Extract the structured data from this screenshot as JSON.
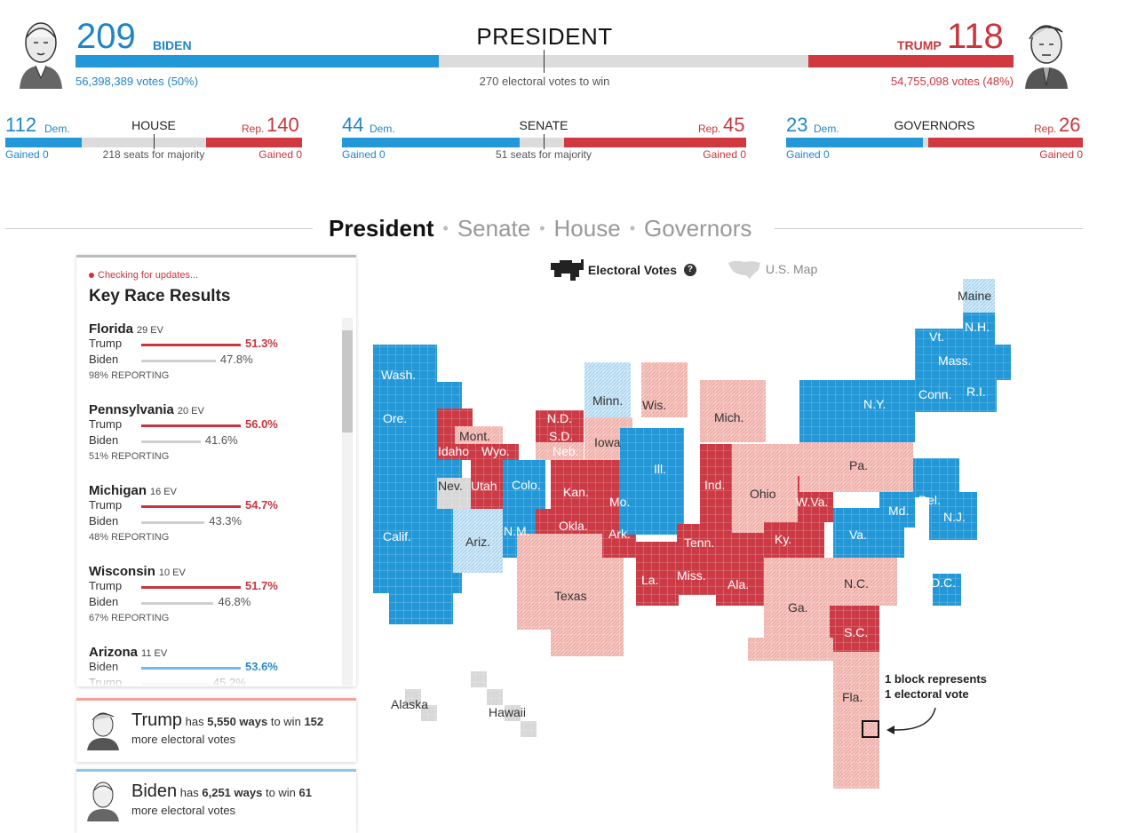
{
  "president": {
    "title": "PRESIDENT",
    "biden": {
      "ev": "209",
      "name": "BIDEN",
      "votes": "56,398,389 votes (50%)",
      "ev_share": 0.387
    },
    "trump": {
      "ev": "118",
      "name": "TRUMP",
      "votes": "54,755,098 votes (48%)",
      "ev_share": 0.219
    },
    "to_win": "270 electoral votes to win"
  },
  "chambers": [
    {
      "title": "HOUSE",
      "dem": "112",
      "rep": "140",
      "dem_label": "Dem.",
      "rep_label": "Rep.",
      "majority": "218 seats for majority",
      "dem_gained": "Gained 0",
      "rep_gained": "Gained 0",
      "dem_share": 0.257,
      "rep_share": 0.322
    },
    {
      "title": "SENATE",
      "dem": "44",
      "rep": "45",
      "dem_label": "Dem.",
      "rep_label": "Rep.",
      "majority": "51 seats for majority",
      "dem_gained": "Gained 0",
      "rep_gained": "Gained 0",
      "dem_share": 0.44,
      "rep_share": 0.45
    },
    {
      "title": "GOVERNORS",
      "dem": "23",
      "rep": "26",
      "dem_label": "Dem.",
      "rep_label": "Rep.",
      "majority": "",
      "dem_gained": "Gained 0",
      "rep_gained": "Gained 0",
      "dem_share": 0.46,
      "rep_share": 0.52
    }
  ],
  "tabs": [
    "President",
    "Senate",
    "House",
    "Governors"
  ],
  "key_races": {
    "status": "Checking for updates...",
    "title": "Key Race Results",
    "races": [
      {
        "state": "Florida",
        "ev": "29 EV",
        "rows": [
          {
            "name": "Trump",
            "pct": "51.3%",
            "party": "rep",
            "value": 51.3,
            "lead": true
          },
          {
            "name": "Biden",
            "pct": "47.8%",
            "party": "dem",
            "value": 47.8,
            "lead": false
          }
        ],
        "reporting": "98% REPORTING"
      },
      {
        "state": "Pennsylvania",
        "ev": "20 EV",
        "rows": [
          {
            "name": "Trump",
            "pct": "56.0%",
            "party": "rep",
            "value": 56.0,
            "lead": true
          },
          {
            "name": "Biden",
            "pct": "41.6%",
            "party": "dem",
            "value": 41.6,
            "lead": false
          }
        ],
        "reporting": "51% REPORTING"
      },
      {
        "state": "Michigan",
        "ev": "16 EV",
        "rows": [
          {
            "name": "Trump",
            "pct": "54.7%",
            "party": "rep",
            "value": 54.7,
            "lead": true
          },
          {
            "name": "Biden",
            "pct": "43.3%",
            "party": "dem",
            "value": 43.3,
            "lead": false
          }
        ],
        "reporting": "48% REPORTING"
      },
      {
        "state": "Wisconsin",
        "ev": "10 EV",
        "rows": [
          {
            "name": "Trump",
            "pct": "51.7%",
            "party": "rep",
            "value": 51.7,
            "lead": true
          },
          {
            "name": "Biden",
            "pct": "46.8%",
            "party": "dem",
            "value": 46.8,
            "lead": false
          }
        ],
        "reporting": "67% REPORTING"
      },
      {
        "state": "Arizona",
        "ev": "11 EV",
        "rows": [
          {
            "name": "Biden",
            "pct": "53.6%",
            "party": "dem",
            "value": 53.6,
            "lead": true
          },
          {
            "name": "Trump",
            "pct": "45.2%",
            "party": "rep",
            "value": 45.2,
            "lead": false
          }
        ],
        "reporting": ""
      }
    ]
  },
  "paths": [
    {
      "candidate": "Trump",
      "has": "has",
      "ways": "5,550 ways",
      "to_win": "to win",
      "ev": "152",
      "rest": "more electoral votes",
      "party": "rep"
    },
    {
      "candidate": "Biden",
      "has": "has",
      "ways": "6,251 ways",
      "to_win": "to win",
      "ev": "61",
      "rest": "more electoral votes",
      "party": "dem"
    }
  ],
  "map_toggle": {
    "electoral": "Electoral Votes",
    "help": "?",
    "us_map": "U.S. Map"
  },
  "map": {
    "labels": [
      "Wash.",
      "Ore.",
      "Calif.",
      "Nev.",
      "Idaho",
      "Mont.",
      "Wyo.",
      "Utah",
      "Colo.",
      "Ariz.",
      "N.M.",
      "N.D.",
      "S.D.",
      "Neb.",
      "Kan.",
      "Okla.",
      "Texas",
      "Minn.",
      "Iowa",
      "Mo.",
      "Ark.",
      "La.",
      "Wis.",
      "Ill.",
      "Miss.",
      "Mich.",
      "Ind.",
      "Tenn.",
      "Ala.",
      "Ohio",
      "Ky.",
      "Ga.",
      "Fla.",
      "S.C.",
      "N.C.",
      "Va.",
      "W.Va.",
      "Pa.",
      "Md.",
      "Del.",
      "N.J.",
      "N.Y.",
      "Conn.",
      "R.I.",
      "Mass.",
      "Vt.",
      "N.H.",
      "Maine",
      "D.C.",
      "Alaska",
      "Hawaii"
    ],
    "legend": [
      "1 block represents",
      "1 electoral vote"
    ],
    "colors": {
      "dem": "#2298d8",
      "dem_lean": "#9fd0ee",
      "rep": "#cc3a45",
      "rep_lean": "#f4b3ad",
      "tossup": "#d8d8d8"
    }
  }
}
